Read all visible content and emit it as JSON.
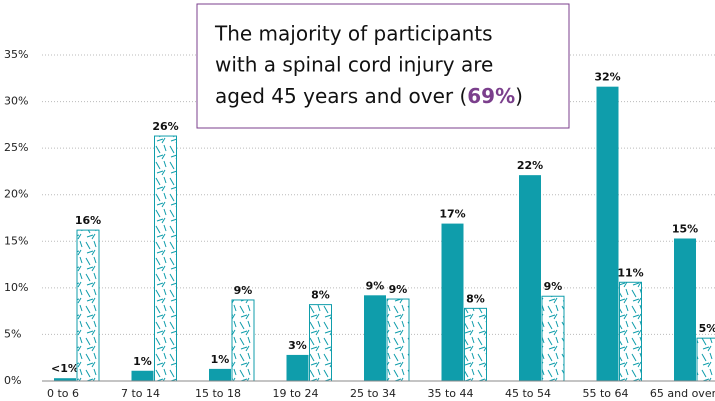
{
  "chart_data": {
    "type": "bar",
    "categories": [
      "0 to 6",
      "7 to 14",
      "15 to 18",
      "19 to 24",
      "25 to 34",
      "35 to 44",
      "45 to 54",
      "55 to 64",
      "65 and over"
    ],
    "series": [
      {
        "color": "#0f9dab",
        "values": [
          0.3,
          1.1,
          1.3,
          2.8,
          9.2,
          16.9,
          22.1,
          31.6,
          15.3
        ],
        "value_labels": [
          "<1%",
          "1%",
          "1%",
          "3%",
          "9%",
          "17%",
          "22%",
          "32%",
          "15%"
        ]
      },
      {
        "color": "#0f9dab",
        "values": [
          16.2,
          26.3,
          8.7,
          8.2,
          8.8,
          7.8,
          9.1,
          10.6,
          4.6
        ],
        "value_labels": [
          "16%",
          "26%",
          "9%",
          "8%",
          "9%",
          "8%",
          "9%",
          "11%",
          "5%"
        ]
      }
    ],
    "ylim": [
      0,
      35
    ],
    "yticks": [
      {
        "value": 0,
        "label": "0%"
      },
      {
        "value": 5,
        "label": "5%"
      },
      {
        "value": 10,
        "label": "10%"
      },
      {
        "value": 15,
        "label": "15%"
      },
      {
        "value": 20,
        "label": "20%"
      },
      {
        "value": 25,
        "label": "25%"
      },
      {
        "value": 30,
        "label": "30%"
      },
      {
        "value": 35,
        "label": "35%"
      }
    ],
    "grid": true,
    "annotation": {
      "lines": [
        "The majority of participants",
        "with a spinal cord injury are",
        "aged 45 years and over ("
      ],
      "highlight": "69%",
      "end": ")",
      "highlight_color": "#7b3f8c"
    }
  }
}
